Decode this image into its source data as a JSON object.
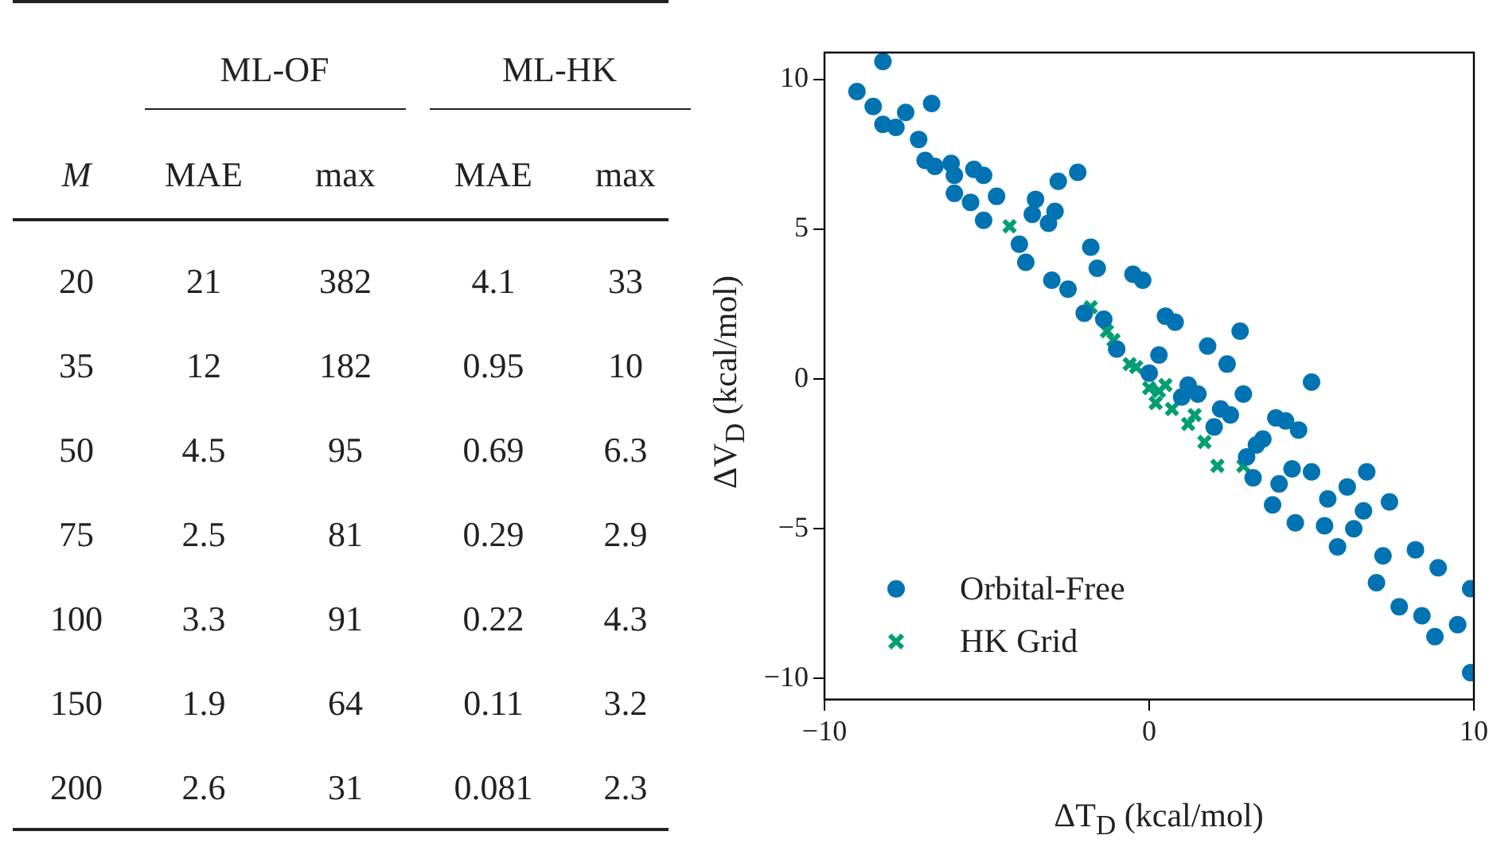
{
  "chart_data": [
    {
      "type": "other",
      "annotations": [
        "ML-OF",
        "ML-HK",
        "M",
        "MAE",
        "max",
        "MAE",
        "max",
        "20",
        "21",
        "382",
        "4.1",
        "33",
        "35",
        "12",
        "182",
        "0.95",
        "10",
        "50",
        "4.5",
        "95",
        "0.69",
        "6.3",
        "75",
        "2.5",
        "81",
        "0.29",
        "2.9",
        "100",
        "3.3",
        "91",
        "0.22",
        "4.3",
        "150",
        "1.9",
        "64",
        "0.11",
        "3.2",
        "200",
        "2.6",
        "31",
        "0.081",
        "2.3"
      ]
    },
    {
      "type": "scatter",
      "xlabel": "ΔT$_{D}$ (kcal/mol)",
      "ylabel": "ΔV$_{D}$ (kcal/mol)",
      "xlim": [
        -10,
        10
      ],
      "ylim": [
        -10.7,
        10.9
      ],
      "xticks": [
        -10,
        0,
        10
      ],
      "yticks": [
        -10,
        -5,
        0,
        5,
        10
      ],
      "grid": false,
      "legend": "lower left",
      "series": [
        {
          "name": "Orbital-Free",
          "color": "#0173b2",
          "marker": "circle",
          "x": [
            -8.2,
            -9.0,
            -8.5,
            -8.2,
            -7.8,
            -7.5,
            -6.7,
            -7.1,
            -6.9,
            -6.6,
            -6.1,
            -6.0,
            -5.4,
            -5.1,
            -6.0,
            -5.5,
            -4.7,
            -5.1,
            -3.5,
            -2.8,
            -2.2,
            -2.9,
            -3.6,
            -3.1,
            -1.8,
            -1.6,
            -0.5,
            -0.2,
            -3.8,
            0.5,
            0.8,
            2.8,
            1.8,
            2.4,
            5.0,
            3.9,
            4.6,
            2.9,
            -4.0,
            -3.0,
            -2.0,
            -1.0,
            0.0,
            1.0,
            2.0,
            3.0,
            4.0,
            1.5,
            2.5,
            3.5,
            9.9,
            9.9,
            9.5,
            8.8,
            8.9,
            8.2,
            7.4,
            6.7,
            6.1,
            6.6,
            7.7,
            8.4,
            7.0,
            5.8,
            5.0,
            4.2,
            5.4,
            4.5,
            3.8,
            3.2,
            -2.5,
            -1.4,
            0.3,
            1.2,
            2.2,
            3.3,
            4.4,
            5.5,
            6.3,
            7.2
          ],
          "values": [
            10.6,
            9.6,
            9.1,
            8.5,
            8.4,
            8.9,
            9.2,
            8.0,
            7.3,
            7.1,
            7.2,
            6.8,
            7.0,
            6.8,
            6.2,
            5.9,
            6.1,
            5.3,
            6.0,
            6.6,
            6.9,
            5.6,
            5.5,
            5.2,
            4.4,
            3.7,
            3.5,
            3.3,
            3.9,
            2.1,
            1.9,
            1.6,
            1.1,
            0.5,
            -0.1,
            -1.3,
            -1.7,
            -0.5,
            4.5,
            3.3,
            2.2,
            1.0,
            0.2,
            -0.6,
            -1.6,
            -2.6,
            -3.5,
            -0.5,
            -1.2,
            -2.0,
            -7.0,
            -9.8,
            -8.2,
            -8.6,
            -6.3,
            -5.7,
            -4.1,
            -3.1,
            -3.6,
            -4.4,
            -7.6,
            -7.9,
            -6.8,
            -5.6,
            -3.1,
            -1.4,
            -4.9,
            -4.8,
            -4.2,
            -3.3,
            3.0,
            2.0,
            0.8,
            -0.2,
            -1.0,
            -2.2,
            -3.0,
            -4.0,
            -5.0,
            -5.9
          ]
        },
        {
          "name": "HK Grid",
          "color": "#029e73",
          "marker": "cross",
          "x": [
            -4.3,
            -1.8,
            -1.1,
            -0.4,
            0.0,
            0.7,
            1.4,
            1.7,
            2.1,
            2.9,
            0.3,
            0.5,
            -0.6,
            1.2,
            -1.3,
            0.2
          ],
          "values": [
            5.1,
            2.4,
            1.3,
            0.4,
            -0.3,
            -1.0,
            -1.2,
            -2.1,
            -2.9,
            -2.9,
            -0.4,
            -0.2,
            0.5,
            -1.5,
            1.6,
            -0.8
          ]
        }
      ]
    }
  ]
}
